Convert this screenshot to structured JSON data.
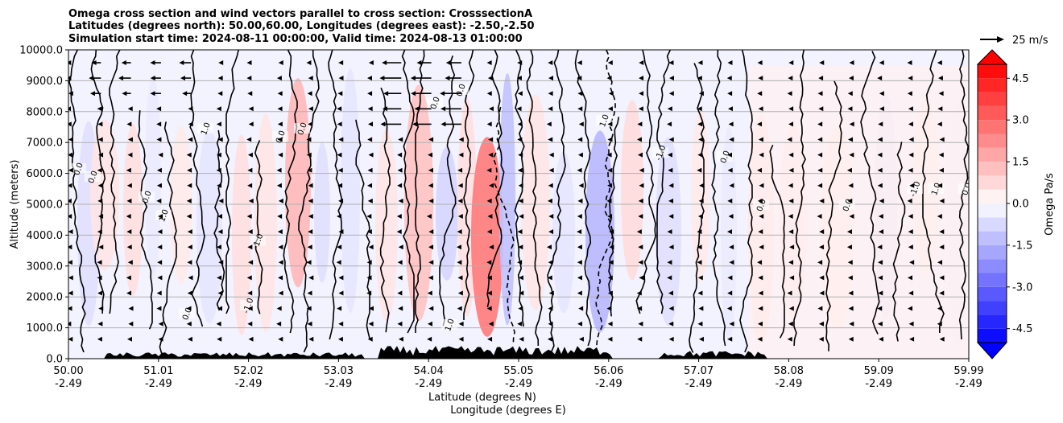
{
  "chart_data": {
    "type": "heatmap",
    "title_lines": [
      "Omega cross section and wind vectors parallel to cross section: CrosssectionA",
      "Latitudes (degrees north): 50.00,60.00, Longitudes (degrees east): -2.50,-2.50",
      "Simulation start time: 2024-08-11 00:00:00, Valid time: 2024-08-13 01:00:00"
    ],
    "ylabel": "Altitude (meters)",
    "xlabel_lat": "Latitude (degrees N)",
    "xlabel_lon": "Longitude (degrees E)",
    "ylim": [
      0,
      10000
    ],
    "yticks": [
      "0.0",
      "1000.0",
      "2000.0",
      "3000.0",
      "4000.0",
      "5000.0",
      "6000.0",
      "7000.0",
      "8000.0",
      "9000.0",
      "10000.0"
    ],
    "xticks": [
      {
        "lat": "50.00",
        "lon": "-2.49"
      },
      {
        "lat": "51.01",
        "lon": "-2.49"
      },
      {
        "lat": "52.02",
        "lon": "-2.49"
      },
      {
        "lat": "53.03",
        "lon": "-2.49"
      },
      {
        "lat": "54.04",
        "lon": "-2.49"
      },
      {
        "lat": "55.05",
        "lon": "-2.49"
      },
      {
        "lat": "56.06",
        "lon": "-2.49"
      },
      {
        "lat": "57.07",
        "lon": "-2.49"
      },
      {
        "lat": "58.08",
        "lon": "-2.49"
      },
      {
        "lat": "59.09",
        "lon": "-2.49"
      },
      {
        "lat": "59.99",
        "lon": "-2.49"
      }
    ],
    "grid": "horizontal",
    "colorbar": {
      "label": "Omega Pa/s",
      "range": [
        -5,
        5
      ],
      "ticks": [
        "-4.5",
        "-3.0",
        "-1.5",
        "0.0",
        "1.5",
        "3.0",
        "4.5"
      ],
      "colormap": "bwr",
      "extend": "both"
    },
    "quiver_key": {
      "label": "25 m/s",
      "value": 25
    },
    "contour_levels": [
      -1.0,
      0.0,
      1.0
    ],
    "contour_labels": [
      "0.0",
      "0.0",
      "0.0",
      "1.0",
      "1.0",
      "-1.0",
      "-1.0",
      "0.0",
      "0.0",
      "0.0",
      "0.0",
      "1.0",
      "-1.0",
      "0.0",
      "0.0",
      "0.0",
      "-1.0",
      "1.0",
      "0.0",
      "0.0",
      "1.0"
    ],
    "wind_vectors": {
      "direction": "leftward",
      "typical_speed_m_s": 2
    }
  }
}
